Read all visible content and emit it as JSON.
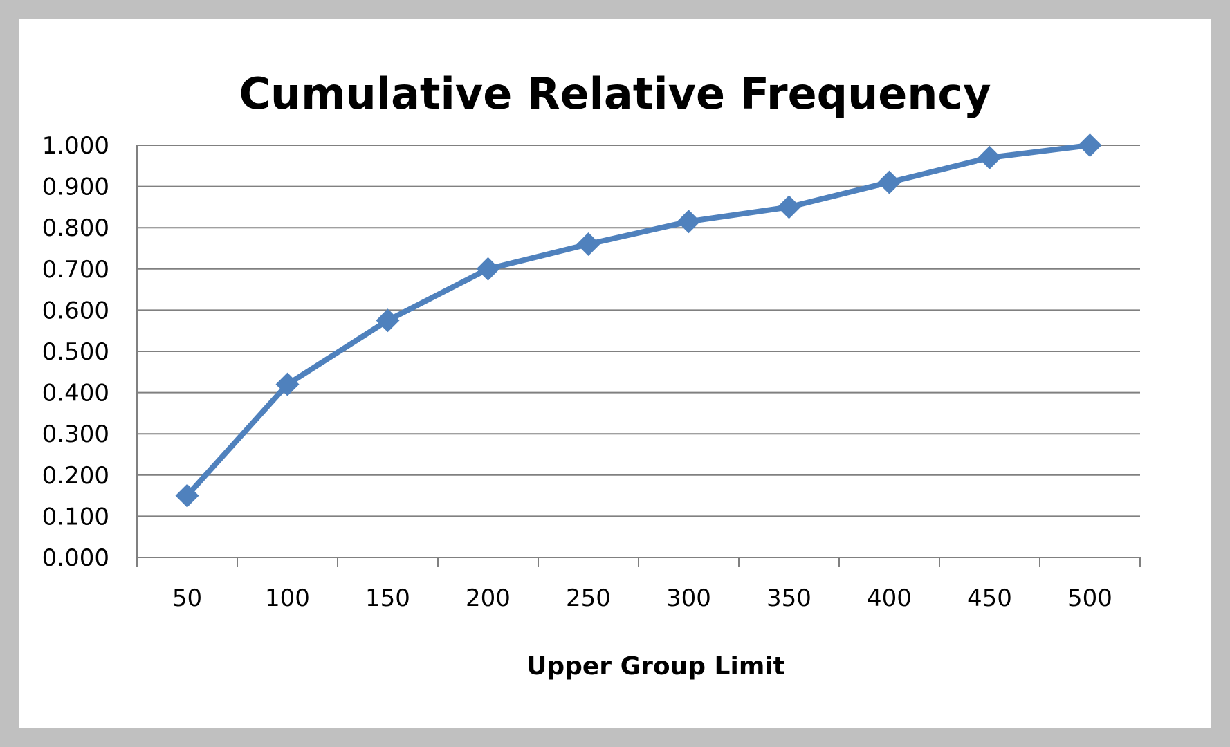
{
  "chart_data": {
    "type": "line",
    "title": "Cumulative Relative Frequency",
    "xlabel": "Upper Group Limit",
    "ylabel": "",
    "categories": [
      "50",
      "100",
      "150",
      "200",
      "250",
      "300",
      "350",
      "400",
      "450",
      "500"
    ],
    "series": [
      {
        "values": [
          0.15,
          0.42,
          0.575,
          0.7,
          0.76,
          0.815,
          0.85,
          0.91,
          0.97,
          1.0
        ]
      }
    ],
    "ylim": [
      0,
      1
    ],
    "yticks": [
      "0.000",
      "0.100",
      "0.200",
      "0.300",
      "0.400",
      "0.500",
      "0.600",
      "0.700",
      "0.800",
      "0.900",
      "1.000"
    ],
    "grid": true,
    "legend": "none",
    "marker": "diamond",
    "colors": {
      "series": "#4f81bd",
      "grid": "#808080",
      "axis": "#808080",
      "background": "#ffffff",
      "outer": "#c0c0c0"
    }
  }
}
